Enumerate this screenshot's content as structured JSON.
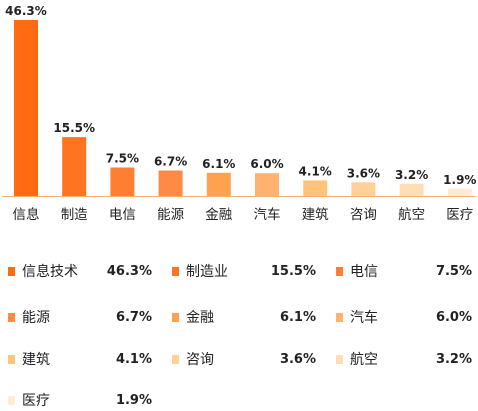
{
  "chart_data": {
    "type": "bar",
    "title": "",
    "xlabel": "",
    "ylabel": "",
    "ylim": [
      0,
      46.3
    ],
    "grid": false,
    "categories": [
      "信息",
      "制造",
      "电信",
      "能源",
      "金融",
      "汽车",
      "建筑",
      "咨询",
      "航空",
      "医疗"
    ],
    "values": [
      46.3,
      15.5,
      7.5,
      6.7,
      6.1,
      6.0,
      4.1,
      3.6,
      3.2,
      1.9
    ],
    "value_labels": [
      "46.3%",
      "15.5%",
      "7.5%",
      "6.7%",
      "6.1%",
      "6.0%",
      "4.1%",
      "3.6%",
      "3.2%",
      "1.9%"
    ],
    "colors": [
      "#FF6A13",
      "#FF7420",
      "#FF7F32",
      "#FF8A45",
      "#FFA250",
      "#FFB36E",
      "#FFC37A",
      "#FFD097",
      "#FFDEB6",
      "#FFEBD3"
    ],
    "legend": {
      "placement": "bottom",
      "items": [
        {
          "label": "信息技术",
          "value": "46.3%"
        },
        {
          "label": "制造业",
          "value": "15.5%"
        },
        {
          "label": "电信",
          "value": "7.5%"
        },
        {
          "label": "能源",
          "value": "6.7%"
        },
        {
          "label": "金融",
          "value": "6.1%"
        },
        {
          "label": "汽车",
          "value": "6.0%"
        },
        {
          "label": "建筑",
          "value": "4.1%"
        },
        {
          "label": "咨询",
          "value": "3.6%"
        },
        {
          "label": "航空",
          "value": "3.2%"
        },
        {
          "label": "医疗",
          "value": "1.9%"
        }
      ]
    },
    "axis_line_color": "#F2B27A"
  }
}
